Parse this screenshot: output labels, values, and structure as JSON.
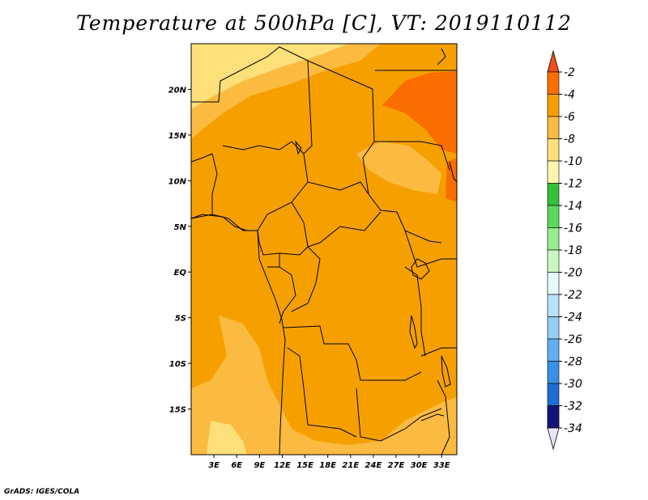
{
  "title": "Temperature at 500hPa [C], VT: 2019110112",
  "credit": "GrADS: IGES/COLA",
  "map": {
    "lat_range": [
      -20,
      25
    ],
    "lon_range": [
      0,
      35
    ],
    "lat_ticks": [
      {
        "value": 20,
        "label": "20N"
      },
      {
        "value": 15,
        "label": "15N"
      },
      {
        "value": 10,
        "label": "10N"
      },
      {
        "value": 5,
        "label": "5N"
      },
      {
        "value": 0,
        "label": "EQ"
      },
      {
        "value": -5,
        "label": "5S"
      },
      {
        "value": -10,
        "label": "10S"
      },
      {
        "value": -15,
        "label": "15S"
      }
    ],
    "lon_ticks": [
      {
        "value": 3,
        "label": "3E"
      },
      {
        "value": 6,
        "label": "6E"
      },
      {
        "value": 9,
        "label": "9E"
      },
      {
        "value": 12,
        "label": "12E"
      },
      {
        "value": 15,
        "label": "15E"
      },
      {
        "value": 18,
        "label": "18E"
      },
      {
        "value": 21,
        "label": "21E"
      },
      {
        "value": 24,
        "label": "24E"
      },
      {
        "value": 27,
        "label": "27E"
      },
      {
        "value": 30,
        "label": "30E"
      },
      {
        "value": 33,
        "label": "33E"
      }
    ]
  },
  "colorbar": {
    "levels": [
      {
        "label": "-2",
        "color": "#f0501e"
      },
      {
        "label": "-4",
        "color": "#fa6e00"
      },
      {
        "label": "-6",
        "color": "#f5a000"
      },
      {
        "label": "-8",
        "color": "#fbba40"
      },
      {
        "label": "-10",
        "color": "#fde07a"
      },
      {
        "label": "-12",
        "color": "#fff6ae"
      },
      {
        "label": "-14",
        "color": "#34c03a"
      },
      {
        "label": "-16",
        "color": "#5ad85c"
      },
      {
        "label": "-18",
        "color": "#98ee8e"
      },
      {
        "label": "-20",
        "color": "#c8f8c0"
      },
      {
        "label": "-22",
        "color": "#e4fbfb"
      },
      {
        "label": "-24",
        "color": "#b8e2f8"
      },
      {
        "label": "-26",
        "color": "#94cdf5"
      },
      {
        "label": "-28",
        "color": "#60aff0"
      },
      {
        "label": "-30",
        "color": "#3a90e6"
      },
      {
        "label": "-32",
        "color": "#1e6ed2"
      },
      {
        "label": "-34",
        "color": "#1450b8"
      }
    ],
    "top_arrow_color": "#f0501e",
    "bottom_arrow_color": "#e6e6fa",
    "bottom_segment_color": "#141478"
  },
  "field_colors": {
    "cold": "#fde07a",
    "cool": "#fbba40",
    "mid": "#f5a000",
    "warm": "#fa6e00"
  }
}
